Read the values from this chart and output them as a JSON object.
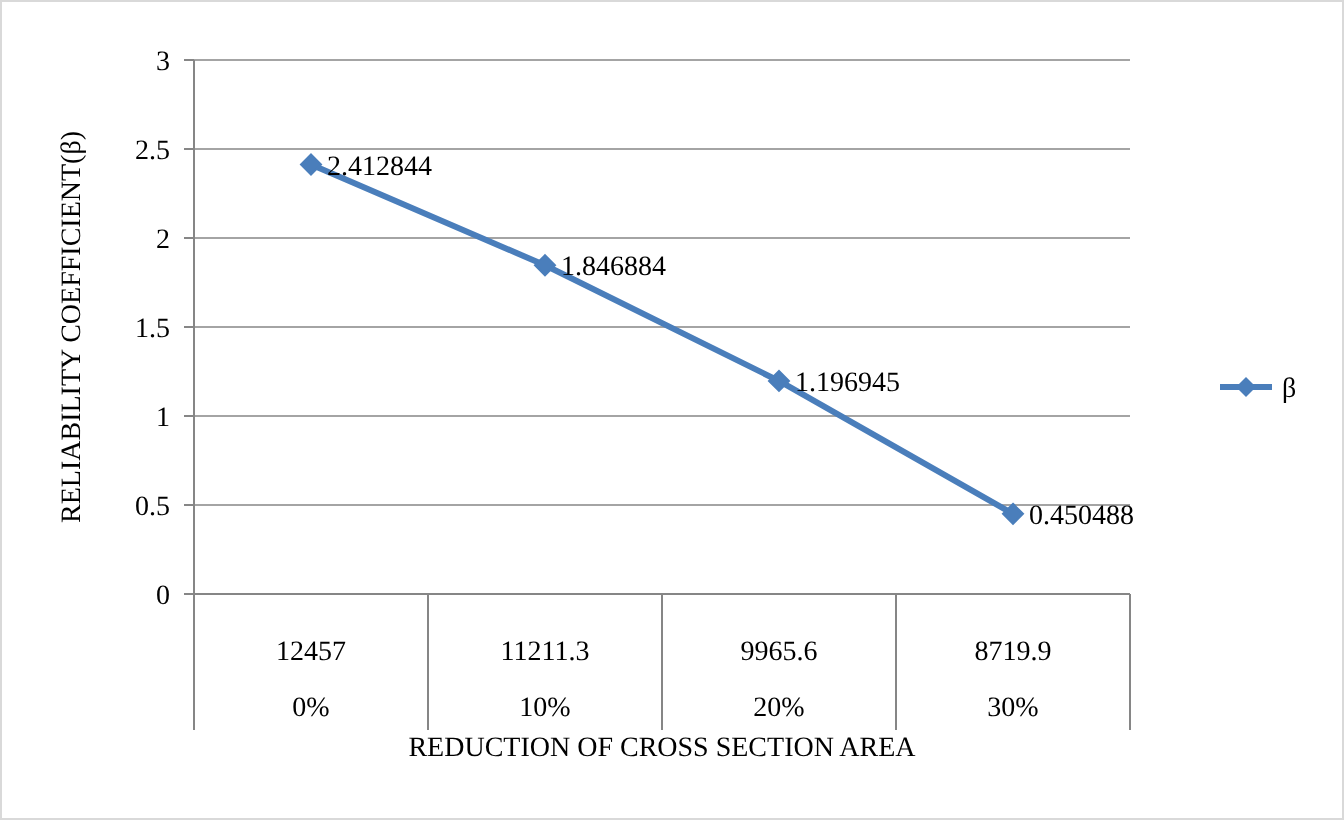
{
  "chart_data": {
    "type": "line",
    "xlabel": "REDUCTION OF CROSS SECTION AREA",
    "ylabel": "RELIABILITY  COEFFICIENT(β)",
    "categories": [
      "12457\n0%",
      "11211.3\n10%",
      "9965.6\n20%",
      "8719.9\n30%"
    ],
    "series": [
      {
        "name": "β",
        "color": "#4a7ebb",
        "values": [
          2.412844,
          1.846884,
          1.196945,
          0.450488
        ]
      }
    ],
    "ylim": [
      0,
      3
    ],
    "yticks": [
      0,
      0.5,
      1,
      1.5,
      2,
      2.5,
      3
    ],
    "grid": "y",
    "legend": "right",
    "marker": "diamond",
    "line_style": "solid",
    "data_labels": true
  }
}
